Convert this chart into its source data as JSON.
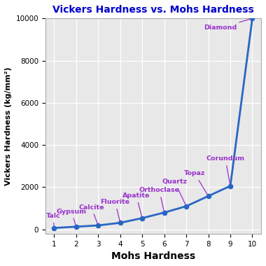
{
  "mohs": [
    1,
    2,
    3,
    4,
    5,
    6,
    7,
    8,
    9,
    10
  ],
  "vickers": [
    70,
    130,
    190,
    315,
    535,
    800,
    1100,
    1580,
    2060,
    10000
  ],
  "line_color": "#2866c4",
  "marker_color": "#2866c4",
  "label_color": "#9932CC",
  "title": "Vickers Hardness vs. Mohs Hardness",
  "title_color": "#0000CC",
  "xlabel": "Mohs Hardness",
  "ylabel": "Vickers Hardness (kg/mm²)",
  "xlim": [
    0.6,
    10.4
  ],
  "ylim": [
    -200,
    10000
  ],
  "yticks": [
    0,
    2000,
    4000,
    6000,
    8000,
    10000
  ],
  "xticks": [
    1,
    2,
    3,
    4,
    5,
    6,
    7,
    8,
    9,
    10
  ],
  "background_color": "#e8e8e8",
  "annotations": [
    {
      "mineral": "Talc",
      "xi": 0,
      "xt": 0.62,
      "yt": 500,
      "ha": "left"
    },
    {
      "mineral": "Gypsum",
      "xi": 1,
      "xt": 1.1,
      "yt": 700,
      "ha": "left"
    },
    {
      "mineral": "Calcite",
      "xi": 2,
      "xt": 2.1,
      "yt": 900,
      "ha": "left"
    },
    {
      "mineral": "Fluorite",
      "xi": 3,
      "xt": 3.1,
      "yt": 1150,
      "ha": "left"
    },
    {
      "mineral": "Apatite",
      "xi": 4,
      "xt": 4.1,
      "yt": 1450,
      "ha": "left"
    },
    {
      "mineral": "Orthoclase",
      "xi": 5,
      "xt": 4.85,
      "yt": 1700,
      "ha": "left"
    },
    {
      "mineral": "Quartz",
      "xi": 6,
      "xt": 5.9,
      "yt": 2100,
      "ha": "left"
    },
    {
      "mineral": "Topaz",
      "xi": 7,
      "xt": 6.9,
      "yt": 2500,
      "ha": "left"
    },
    {
      "mineral": "Corundum",
      "xi": 8,
      "xt": 7.9,
      "yt": 3200,
      "ha": "left"
    },
    {
      "mineral": "Diamond",
      "xi": 9,
      "xt": 7.8,
      "yt": 9400,
      "ha": "left"
    }
  ]
}
